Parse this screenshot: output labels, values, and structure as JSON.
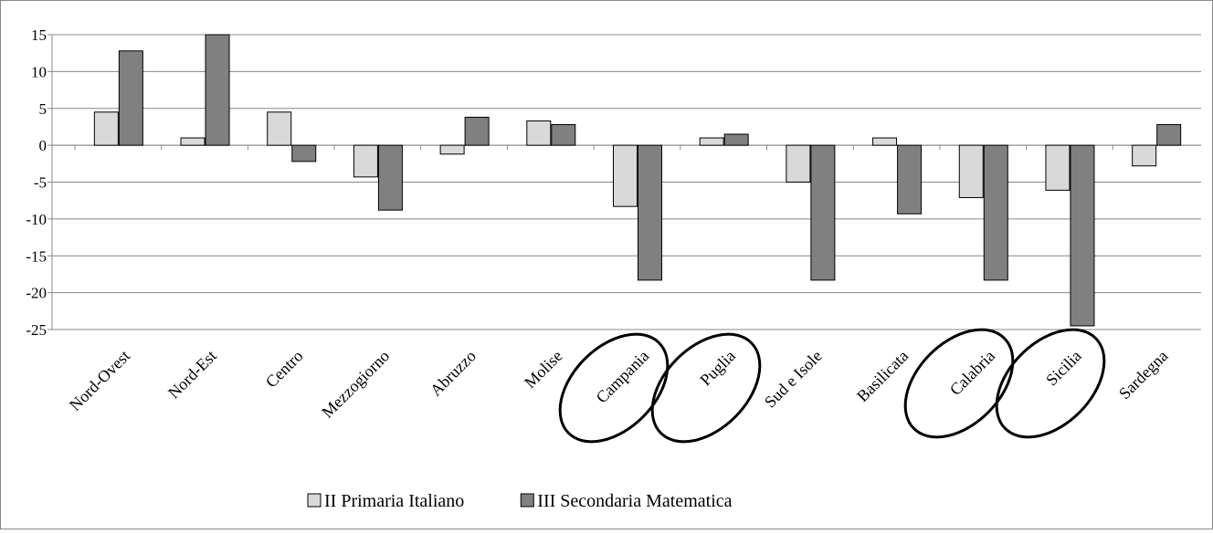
{
  "chart_data": {
    "type": "bar",
    "categories": [
      "Nord-Ovest",
      "Nord-Est",
      "Centro",
      "Mezzogiorno",
      "Abruzzo",
      "Molise",
      "Campania",
      "Puglia",
      "Sud e Isole",
      "Basilicata",
      "Calabria",
      "Sicilia",
      "Sardegna"
    ],
    "series": [
      {
        "name": "II Primaria Italiano",
        "color": "#d9d9d9",
        "values": [
          4.5,
          1,
          4.5,
          -4.3,
          -1.2,
          3.3,
          -8.3,
          1,
          -5,
          1,
          -7.1,
          -6.1,
          -2.8
        ]
      },
      {
        "name": "III Secondaria Matematica",
        "color": "#808080",
        "values": [
          12.8,
          15,
          -2.2,
          -8.8,
          3.8,
          2.8,
          -18.3,
          1.5,
          -18.3,
          -9.3,
          -18.3,
          -24.5,
          2.8
        ]
      }
    ],
    "ylim": [
      -25,
      15
    ],
    "yticks": [
      -25,
      -20,
      -15,
      -10,
      -5,
      0,
      5,
      10,
      15
    ],
    "grid": true,
    "legend": "bottom"
  }
}
